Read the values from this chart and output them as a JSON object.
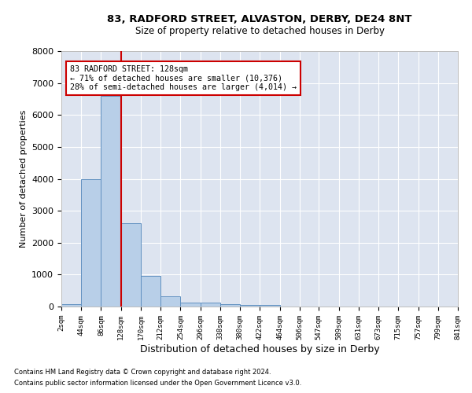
{
  "title1": "83, RADFORD STREET, ALVASTON, DERBY, DE24 8NT",
  "title2": "Size of property relative to detached houses in Derby",
  "xlabel": "Distribution of detached houses by size in Derby",
  "ylabel": "Number of detached properties",
  "footnote1": "Contains HM Land Registry data © Crown copyright and database right 2024.",
  "footnote2": "Contains public sector information licensed under the Open Government Licence v3.0.",
  "annotation_line1": "83 RADFORD STREET: 128sqm",
  "annotation_line2": "← 71% of detached houses are smaller (10,376)",
  "annotation_line3": "28% of semi-detached houses are larger (4,014) →",
  "property_size": 128,
  "bin_edges": [
    2,
    44,
    86,
    128,
    170,
    212,
    254,
    296,
    338,
    380,
    422,
    464,
    506,
    547,
    589,
    631,
    673,
    715,
    757,
    799,
    841
  ],
  "bar_heights": [
    70,
    4000,
    6600,
    2620,
    960,
    330,
    130,
    130,
    80,
    60,
    60,
    0,
    0,
    0,
    0,
    0,
    0,
    0,
    0,
    0
  ],
  "bar_color": "#b8cfe8",
  "bar_edge_color": "#6090c0",
  "vline_color": "#cc0000",
  "vline_x": 128,
  "annotation_box_color": "#cc0000",
  "background_color": "#dde4f0",
  "ylim": [
    0,
    8000
  ],
  "yticks": [
    0,
    1000,
    2000,
    3000,
    4000,
    5000,
    6000,
    7000,
    8000
  ]
}
